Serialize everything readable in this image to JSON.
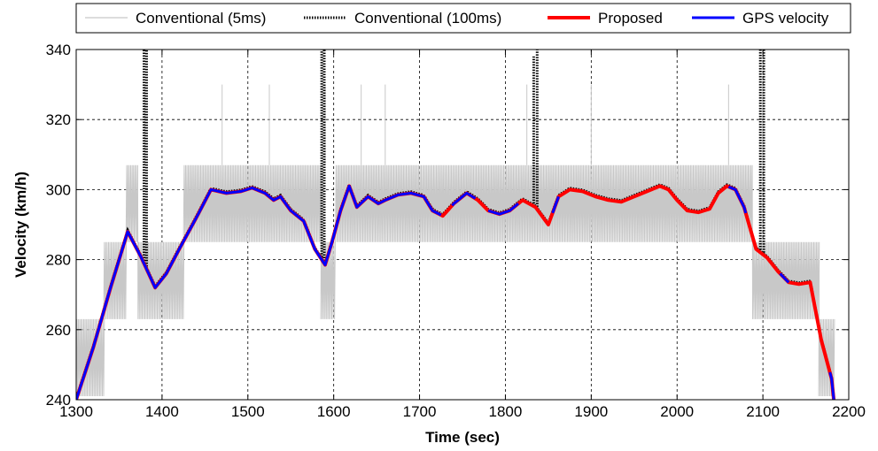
{
  "chart_data": {
    "type": "line",
    "title": "",
    "xlabel": "Time (sec)",
    "ylabel": "Velocity (km/h)",
    "xlim": [
      1300,
      2200
    ],
    "ylim": [
      240,
      340
    ],
    "xticks": [
      1300,
      1400,
      1500,
      1600,
      1700,
      1800,
      1900,
      2000,
      2100,
      2200
    ],
    "yticks": [
      240,
      260,
      280,
      300,
      320,
      340
    ],
    "grid": true,
    "legend_position": "top",
    "series": [
      {
        "name": "Conventional (5ms)",
        "color": "#c8c8c8",
        "style": "solid",
        "quantization_levels": [
          241,
          263,
          285,
          307
        ],
        "segments": [
          {
            "x_start": 1300,
            "x_end": 1332,
            "levels": [
              241,
              263
            ]
          },
          {
            "x_start": 1332,
            "x_end": 1358,
            "levels": [
              263,
              285
            ]
          },
          {
            "x_start": 1358,
            "x_end": 1372,
            "levels": [
              285,
              307
            ]
          },
          {
            "x_start": 1372,
            "x_end": 1425,
            "levels": [
              263,
              285
            ]
          },
          {
            "x_start": 1425,
            "x_end": 1585,
            "levels": [
              285,
              307
            ]
          },
          {
            "x_start": 1585,
            "x_end": 1602,
            "levels": [
              263,
              285
            ]
          },
          {
            "x_start": 1602,
            "x_end": 2088,
            "levels": [
              285,
              307
            ]
          },
          {
            "x_start": 2088,
            "x_end": 2165,
            "levels": [
              263,
              285
            ]
          },
          {
            "x_start": 2165,
            "x_end": 2183,
            "levels": [
              241,
              263
            ]
          }
        ],
        "spikes_x": [
          1380,
          1470,
          1525,
          1590,
          1632,
          1660,
          1825,
          1900,
          2060,
          2100
        ]
      },
      {
        "name": "Conventional (100ms)",
        "color": "#000000",
        "style": "dotted",
        "spikes": [
          {
            "x": 1379,
            "y_max": 340
          },
          {
            "x": 1382,
            "y_max": 340
          },
          {
            "x": 1586,
            "y_max": 340
          },
          {
            "x": 1589,
            "y_max": 340
          },
          {
            "x": 1833,
            "y_max": 338
          },
          {
            "x": 1837,
            "y_max": 340
          },
          {
            "x": 2097,
            "y_max": 340
          },
          {
            "x": 2101,
            "y_max": 340
          }
        ]
      },
      {
        "name": "Proposed",
        "color": "#ff0000",
        "style": "solid",
        "x": [
          1300,
          1320,
          1340,
          1360,
          1375,
          1392,
          1405,
          1420,
          1440,
          1457,
          1475,
          1492,
          1505,
          1520,
          1530,
          1538,
          1550,
          1565,
          1578,
          1590,
          1598,
          1608,
          1618,
          1627,
          1640,
          1652,
          1660,
          1675,
          1690,
          1705,
          1715,
          1727,
          1740,
          1755,
          1768,
          1780,
          1793,
          1805,
          1820,
          1835,
          1850,
          1862,
          1875,
          1890,
          1905,
          1920,
          1935,
          1950,
          1965,
          1980,
          1990,
          2000,
          2012,
          2025,
          2038,
          2048,
          2058,
          2068,
          2078,
          2092,
          2105,
          2118,
          2130,
          2142,
          2155,
          2168,
          2180,
          2183
        ],
        "values": [
          240,
          255,
          272,
          288,
          281,
          272,
          276,
          283,
          292,
          300,
          299,
          299.5,
          300.5,
          299,
          297,
          298,
          294,
          291,
          283,
          278.5,
          285,
          294,
          301,
          295,
          298,
          296,
          297,
          298.5,
          299,
          298,
          294,
          292.5,
          296,
          299,
          297,
          294,
          293,
          294,
          297,
          295,
          290,
          298,
          300,
          299.5,
          298,
          297,
          296.5,
          298,
          299.5,
          301,
          300,
          297,
          294,
          293.5,
          294.5,
          299,
          301,
          300,
          295,
          283,
          280.5,
          276.5,
          273.5,
          273,
          273.5,
          257,
          246,
          239
        ]
      },
      {
        "name": "GPS velocity",
        "color": "#0000ff",
        "style": "solid",
        "x": [
          1300,
          1320,
          1340,
          1360,
          1375,
          1392,
          1405,
          1420,
          1440,
          1457,
          1475,
          1492,
          1505,
          1520,
          1530,
          1538,
          1550,
          1565,
          1578,
          1590,
          1598,
          1608,
          1618,
          1627,
          1640,
          1652,
          1660,
          1675,
          1690,
          1705,
          1715,
          1727,
          1740,
          1755,
          1768,
          1780,
          1793,
          1805,
          1820,
          1835,
          1850,
          1862,
          1875,
          1890,
          1905,
          1920,
          1935,
          1950,
          1965,
          1980,
          1990,
          2000,
          2012,
          2025,
          2038,
          2048,
          2058,
          2068,
          2078,
          2092,
          2105,
          2118,
          2130,
          2142,
          2155,
          2168,
          2180,
          2183
        ],
        "values": [
          240,
          255,
          272,
          288,
          281,
          272,
          276,
          283,
          292,
          300,
          299,
          299.5,
          300.5,
          299,
          297,
          298,
          294,
          291,
          283,
          278.5,
          285,
          294,
          301,
          295,
          298,
          296,
          297,
          298.5,
          299,
          298,
          294,
          292.5,
          296,
          299,
          297,
          294,
          293,
          294,
          297,
          295,
          290,
          298,
          300,
          299.5,
          298,
          297,
          296.5,
          298,
          299.5,
          301,
          300,
          297,
          294,
          293.5,
          294.5,
          299,
          301,
          300,
          295,
          283,
          280.5,
          276.5,
          273.5,
          273,
          273.5,
          257,
          246,
          239
        ],
        "visible_ranges": [
          [
            1300,
            1725
          ],
          [
            1738,
            1765
          ],
          [
            1780,
            1815
          ],
          [
            1855,
            1862
          ],
          [
            2060,
            2080
          ],
          [
            2120,
            2130
          ],
          [
            2178,
            2183
          ]
        ]
      }
    ]
  }
}
